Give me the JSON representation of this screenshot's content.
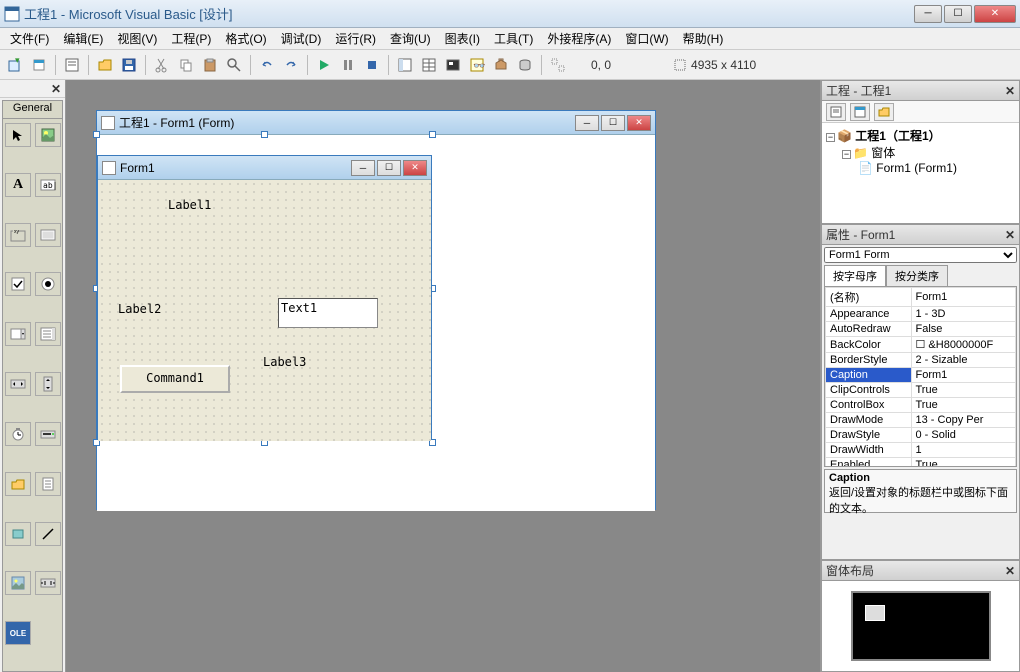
{
  "window": {
    "title": "工程1 - Microsoft Visual Basic [设计]"
  },
  "menu": {
    "file": "文件(F)",
    "edit": "编辑(E)",
    "view": "视图(V)",
    "project": "工程(P)",
    "format": "格式(O)",
    "debug": "调试(D)",
    "run": "运行(R)",
    "query": "查询(U)",
    "diagram": "图表(I)",
    "tools": "工具(T)",
    "addins": "外接程序(A)",
    "window_m": "窗口(W)",
    "help": "帮助(H)"
  },
  "toolbar": {
    "coords": "0, 0",
    "size": "4935 x 4110"
  },
  "toolbox_label": "General",
  "designer": {
    "outer_title": "工程1 - Form1 (Form)",
    "inner_title": "Form1",
    "label1": "Label1",
    "label2": "Label2",
    "label3": "Label3",
    "text1": "Text1",
    "command1": "Command1"
  },
  "project_panel": {
    "title": "工程 - 工程1",
    "root": "工程1（工程1）",
    "folder": "窗体",
    "form": "Form1 (Form1)"
  },
  "properties_panel": {
    "title": "属性 - Form1",
    "combo": "Form1 Form",
    "tab_alpha": "按字母序",
    "tab_cat": "按分类序",
    "rows": [
      {
        "name": "(名称)",
        "value": "Form1"
      },
      {
        "name": "Appearance",
        "value": "1 - 3D"
      },
      {
        "name": "AutoRedraw",
        "value": "False"
      },
      {
        "name": "BackColor",
        "value": "☐ &H8000000F"
      },
      {
        "name": "BorderStyle",
        "value": "2 - Sizable"
      },
      {
        "name": "Caption",
        "value": "Form1"
      },
      {
        "name": "ClipControls",
        "value": "True"
      },
      {
        "name": "ControlBox",
        "value": "True"
      },
      {
        "name": "DrawMode",
        "value": "13 - Copy Per"
      },
      {
        "name": "DrawStyle",
        "value": "0 - Solid"
      },
      {
        "name": "DrawWidth",
        "value": "1"
      },
      {
        "name": "Enabled",
        "value": "True"
      }
    ],
    "selected_index": 5,
    "desc_title": "Caption",
    "desc_text": "返回/设置对象的标题栏中或图标下面的文本。"
  },
  "layout_panel": {
    "title": "窗体布局"
  }
}
